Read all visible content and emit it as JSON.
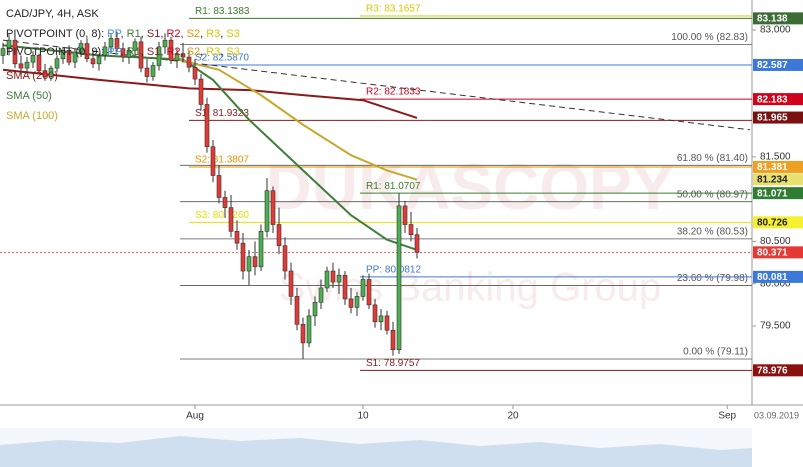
{
  "chart_data": {
    "type": "candlestick",
    "title": "CAD/JPY, 4H, ASK",
    "watermark": [
      "DUKASCOPY",
      "Swiss Banking Group"
    ],
    "x": [
      0,
      1,
      2,
      3,
      4,
      5,
      6,
      7,
      8,
      9,
      10,
      11,
      12,
      13,
      14,
      15,
      16,
      17,
      18,
      19,
      20,
      21,
      22,
      23,
      24,
      25,
      26,
      27,
      28,
      29,
      30,
      31,
      32,
      33,
      34,
      35,
      36,
      37,
      38,
      39,
      40,
      41,
      42,
      43,
      44,
      45,
      46,
      47,
      48,
      49,
      50,
      51,
      52,
      53,
      54,
      55,
      56,
      57,
      58,
      59,
      60,
      61,
      62,
      63,
      64,
      65,
      66,
      67,
      68,
      69
    ],
    "open": [
      82.7,
      82.78,
      82.88,
      82.6,
      82.55,
      82.62,
      82.7,
      82.52,
      82.45,
      82.55,
      82.66,
      82.76,
      82.62,
      82.74,
      82.84,
      82.66,
      82.6,
      82.7,
      82.8,
      82.9,
      82.78,
      82.68,
      82.76,
      82.86,
      82.55,
      82.45,
      82.58,
      82.8,
      82.88,
      82.64,
      82.72,
      82.68,
      82.56,
      82.42,
      82.12,
      81.62,
      81.28,
      81.02,
      80.9,
      80.62,
      80.48,
      80.15,
      80.32,
      80.2,
      80.62,
      81.1,
      80.7,
      80.45,
      80.15,
      79.85,
      79.52,
      79.3,
      79.62,
      79.78,
      79.95,
      80.15,
      80.02,
      80.1,
      79.82,
      79.72,
      79.85,
      80.05,
      79.75,
      79.55,
      79.62,
      79.45,
      79.22,
      80.92,
      80.7,
      80.58
    ],
    "high": [
      82.85,
      82.95,
      82.92,
      82.7,
      82.68,
      82.75,
      82.72,
      82.6,
      82.58,
      82.7,
      82.8,
      82.82,
      82.78,
      82.88,
      82.9,
      82.76,
      82.72,
      82.86,
      82.95,
      82.98,
      82.85,
      82.8,
      82.9,
      82.92,
      82.66,
      82.62,
      82.86,
      82.96,
      82.92,
      82.78,
      82.85,
      82.76,
      82.66,
      82.48,
      82.2,
      81.7,
      81.4,
      81.1,
      81.05,
      80.75,
      80.6,
      80.4,
      80.5,
      80.7,
      81.25,
      81.15,
      80.9,
      80.55,
      80.25,
      79.95,
      79.6,
      79.7,
      79.85,
      80.05,
      80.2,
      80.25,
      80.18,
      80.15,
      79.95,
      79.9,
      80.1,
      80.12,
      79.82,
      79.7,
      79.68,
      79.55,
      81.07,
      80.98,
      80.85,
      80.66
    ],
    "low": [
      82.6,
      82.7,
      82.55,
      82.45,
      82.48,
      82.55,
      82.5,
      82.4,
      82.4,
      82.5,
      82.6,
      82.58,
      82.55,
      82.68,
      82.62,
      82.55,
      82.52,
      82.64,
      82.72,
      82.75,
      82.62,
      82.6,
      82.7,
      82.5,
      82.38,
      82.4,
      82.52,
      82.72,
      82.6,
      82.55,
      82.62,
      82.5,
      82.35,
      82.05,
      81.55,
      81.2,
      80.95,
      80.78,
      80.55,
      80.4,
      80.05,
      79.98,
      80.1,
      80.15,
      80.55,
      80.6,
      80.35,
      80.05,
      79.75,
      79.45,
      79.11,
      79.25,
      79.5,
      79.7,
      79.9,
      79.95,
      79.88,
      79.75,
      79.65,
      79.62,
      79.8,
      79.7,
      79.48,
      79.45,
      79.4,
      79.15,
      79.17,
      80.6,
      80.5,
      80.3
    ],
    "close": [
      82.78,
      82.88,
      82.6,
      82.55,
      82.62,
      82.7,
      82.52,
      82.45,
      82.55,
      82.66,
      82.76,
      82.62,
      82.74,
      82.84,
      82.66,
      82.6,
      82.7,
      82.8,
      82.9,
      82.78,
      82.68,
      82.76,
      82.86,
      82.55,
      82.45,
      82.58,
      82.8,
      82.88,
      82.64,
      82.72,
      82.68,
      82.56,
      82.42,
      82.12,
      81.62,
      81.28,
      81.02,
      80.9,
      80.62,
      80.48,
      80.15,
      80.32,
      80.2,
      80.62,
      81.1,
      80.7,
      80.45,
      80.15,
      79.85,
      79.52,
      79.3,
      79.62,
      79.78,
      79.95,
      80.15,
      80.02,
      80.1,
      79.82,
      79.72,
      79.85,
      80.05,
      79.75,
      79.55,
      79.62,
      79.45,
      79.22,
      80.92,
      80.7,
      80.58,
      80.37
    ],
    "up_color": "#4caf50",
    "down_color": "#e53935",
    "lines": [
      {
        "name": "SMA (200)",
        "color": "#8b1a1a",
        "x": [
          0,
          16,
          31,
          41,
          50,
          60,
          69
        ],
        "values": [
          82.53,
          82.41,
          82.31,
          82.29,
          82.23,
          82.17,
          81.96
        ]
      },
      {
        "name": "SMA (50)",
        "color": "#3e7d3a",
        "x": [
          0,
          16,
          30,
          35,
          41,
          50,
          58,
          64,
          69
        ],
        "values": [
          82.82,
          82.7,
          82.65,
          82.41,
          81.94,
          81.34,
          80.81,
          80.52,
          80.4
        ]
      },
      {
        "name": "SMA (100)",
        "color": "#c8a82c",
        "x": [
          28,
          36,
          43,
          50,
          58,
          64,
          69
        ],
        "values": [
          82.67,
          82.53,
          82.23,
          81.88,
          81.52,
          81.34,
          81.23
        ]
      }
    ],
    "trendline": {
      "color": "#333333",
      "x": [
        0,
        124.5
      ],
      "values": [
        82.88,
        81.82
      ]
    },
    "pivot_legends": [
      {
        "label": "PIVOTPOINT (0, 8):",
        "items": [
          "PP",
          "R1",
          "S1",
          "R2",
          "S2",
          "R3",
          "S3"
        ]
      },
      {
        "label": "PIVOTPOINT (0, 9):",
        "items": [
          "PP",
          "R1",
          "S1",
          "R2",
          "S2",
          "R3",
          "S3"
        ]
      }
    ],
    "pivot_colors": [
      "#4a90d9",
      "#3a7d2c",
      "#8b1a1a",
      "#d0021b",
      "#e69500",
      "#d8c800",
      "#d8c800"
    ],
    "pivot_levels": [
      {
        "label": "R1: 83.1383",
        "value": 83.1383,
        "color": "#3a7d2c",
        "start": 31
      },
      {
        "label": "R3: 83.1657",
        "value": 83.1657,
        "color": "#d8c800",
        "start": 59.5
      },
      {
        "label": "S2: 82.5870",
        "value": 82.587,
        "color": "#3c78d8",
        "start": 31
      },
      {
        "label": "R2: 82.1833",
        "value": 82.1833,
        "color": "#d0021b",
        "start": 59.5
      },
      {
        "label": "S1: 81.9323",
        "value": 81.9323,
        "color": "#8b1a1a",
        "start": 31
      },
      {
        "label": "S2: 81.3807",
        "value": 81.3807,
        "color": "#e69500",
        "start": 31
      },
      {
        "label": "R1: 81.0707",
        "value": 81.0707,
        "color": "#3a7d2c",
        "start": 59.5
      },
      {
        "label": "S3: 80.7260",
        "value": 80.726,
        "color": "#e8e000",
        "start": 31
      },
      {
        "label": "PP: 80.0812",
        "value": 80.0812,
        "color": "#3c78d8",
        "start": 59.5
      },
      {
        "label": "S1: 78.9757",
        "value": 78.9757,
        "color": "#8b1a1a",
        "start": 59.5
      }
    ],
    "fib_levels": [
      {
        "label": "100.00 % (82.83)",
        "value": 82.83
      },
      {
        "label": "61.80 % (81.40)",
        "value": 81.4
      },
      {
        "label": "50.00 % (80.97)",
        "value": 80.97
      },
      {
        "label": "38.20 % (80.53)",
        "value": 80.53
      },
      {
        "label": "23.60 % (79.98)",
        "value": 79.98
      },
      {
        "label": "0.00 % (79.11)",
        "value": 79.11
      }
    ],
    "fib_start": 29.5,
    "current_price": {
      "value": 80.371,
      "color": "#e53935"
    },
    "price_labels": [
      {
        "value": 83.138,
        "color": "#3d6b35"
      },
      {
        "value": 82.587,
        "color": "#3c78d8"
      },
      {
        "value": 82.183,
        "color": "#d0021b"
      },
      {
        "value": 81.965,
        "color": "#7b1010"
      },
      {
        "value": 81.381,
        "color": "#f0a020"
      },
      {
        "value": 81.234,
        "color": "#e8e070"
      },
      {
        "value": 81.071,
        "color": "#2e7d32"
      },
      {
        "value": 80.726,
        "color": "#f5f030"
      },
      {
        "value": 80.371,
        "color": "#e53935"
      },
      {
        "value": 80.081,
        "color": "#3c78d8"
      },
      {
        "value": 78.976,
        "color": "#8b1010"
      }
    ],
    "xlim": [
      -0.5,
      124.83
    ],
    "ylim": [
      78.566,
      83.355
    ],
    "xticks": [
      {
        "value": 32,
        "label": "Aug"
      },
      {
        "value": 60,
        "label": "10"
      },
      {
        "value": 85,
        "label": "20"
      },
      {
        "value": 120.7,
        "label": "Sep"
      }
    ],
    "date_label": "03.09.2019",
    "yticks": [
      {
        "value": 83,
        "label": "83.000"
      },
      {
        "value": 81.5,
        "label": "81.500"
      },
      {
        "value": 80.5,
        "label": "80.500"
      },
      {
        "value": 80,
        "label": "80.000"
      },
      {
        "value": 79.5,
        "label": "79.500"
      }
    ]
  }
}
